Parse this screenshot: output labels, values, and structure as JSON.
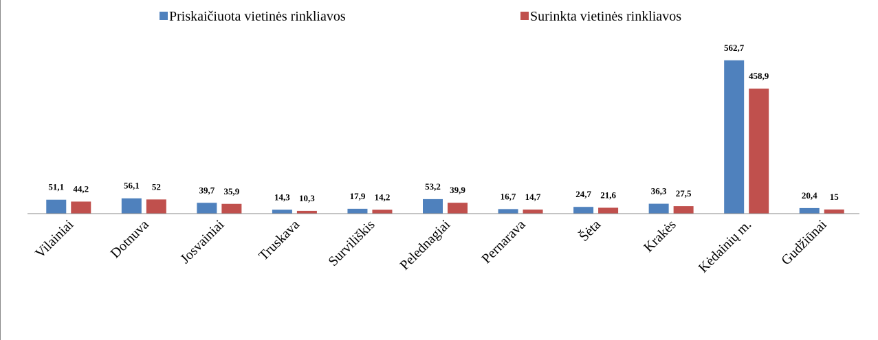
{
  "chart_data": {
    "type": "bar",
    "categories": [
      "Vilainiai",
      "Dotnuva",
      "Josvainiai",
      "Truskava",
      "Surviliškis",
      "Pelednagiai",
      "Pernarava",
      "Šėta",
      "Krakės",
      "Kėdainių m.",
      "Gudžiūnai"
    ],
    "series": [
      {
        "name": "Priskaičiuota vietinės rinkliavos",
        "color": "#4f81bd",
        "values": [
          51.1,
          56.1,
          39.7,
          14.3,
          17.9,
          53.2,
          16.7,
          24.7,
          36.3,
          562.7,
          20.4
        ],
        "value_labels": [
          "51,1",
          "56,1",
          "39,7",
          "14,3",
          "17,9",
          "53,2",
          "16,7",
          "24,7",
          "36,3",
          "562,7",
          "20,4"
        ]
      },
      {
        "name": "Surinkta vietinės rinkliavos",
        "color": "#c0504d",
        "values": [
          44.2,
          52,
          35.9,
          10.3,
          14.2,
          39.9,
          14.7,
          21.6,
          27.5,
          458.9,
          15
        ],
        "value_labels": [
          "44,2",
          "52",
          "35,9",
          "10,3",
          "14,2",
          "39,9",
          "14,7",
          "21,6",
          "27,5",
          "458,9",
          "15"
        ]
      }
    ],
    "ylim": [
      0,
      600
    ]
  }
}
